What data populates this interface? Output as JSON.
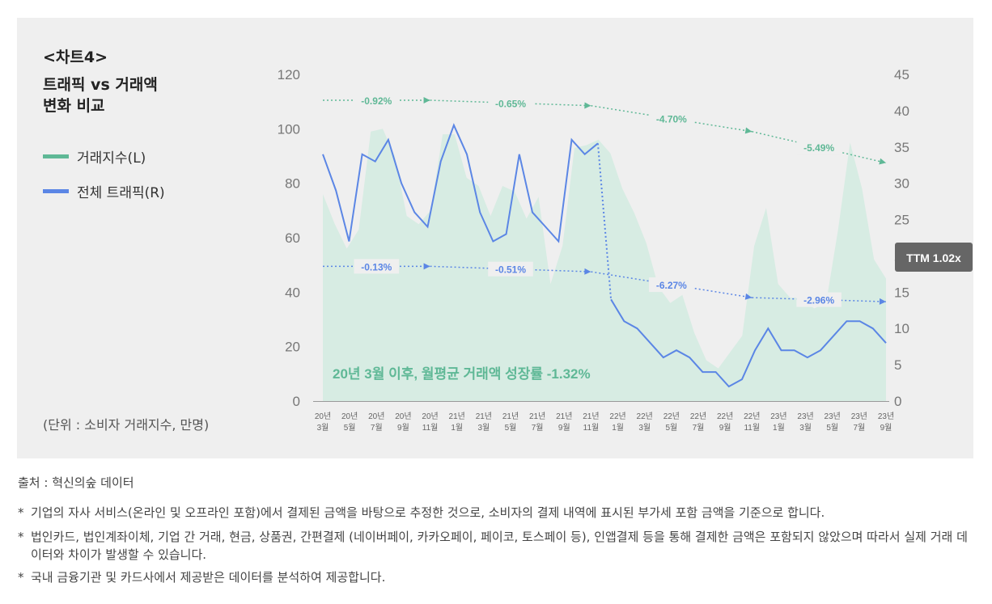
{
  "chart_label": "<차트4>",
  "title_lines": [
    "트래픽 vs 거래액",
    "변화 비교"
  ],
  "legend": [
    {
      "label": "거래지수(L)",
      "color": "#5fb896"
    },
    {
      "label": "전체 트래픽(R)",
      "color": "#5b86e5"
    }
  ],
  "unit_note": "(단위 : 소비자 거래지수, 만명)",
  "source": "출처 : 혁신의숲 데이터",
  "notes": [
    {
      "star": "*",
      "text": "기업의 자사 서비스(온라인 및 오프라인 포함)에서 결제된 금액을 바탕으로 추정한 것으로, 소비자의 결제 내역에 표시된 부가세 포함 금액을 기준으로 합니다."
    },
    {
      "star": "*",
      "text": "법인카드, 법인계좌이체, 기업 간 거래, 현금, 상품권, 간편결제 (네이버페이, 카카오페이, 페이코, 토스페이 등), 인앱결제 등을 통해 결제한 금액은 포함되지 않았으며 따라서 실제 거래 데이터와 차이가 발생할 수 있습니다."
    },
    {
      "star": "*",
      "text": "국내 금융기관 및 카드사에서 제공받은 데이터를 분석하여 제공합니다."
    }
  ],
  "colors": {
    "area": "#d7ece3",
    "traffic": "#5b86e5",
    "trend_green": "#5fb896",
    "trend_blue": "#5b86e5",
    "ttm_bg": "#666666"
  },
  "chart_data": {
    "type": "area+line",
    "y_left": {
      "min": 0,
      "max": 120,
      "ticks": [
        0,
        20,
        40,
        60,
        80,
        100,
        120
      ]
    },
    "y_right": {
      "min": 0,
      "max": 45,
      "ticks": [
        0,
        5,
        10,
        15,
        20,
        25,
        30,
        35,
        40,
        45
      ]
    },
    "x_tick_labels": [
      [
        "20년",
        "3월"
      ],
      [
        "20년",
        "5월"
      ],
      [
        "20년",
        "7월"
      ],
      [
        "20년",
        "9월"
      ],
      [
        "20년",
        "11월"
      ],
      [
        "21년",
        "1월"
      ],
      [
        "21년",
        "3월"
      ],
      [
        "21년",
        "5월"
      ],
      [
        "21년",
        "7월"
      ],
      [
        "21년",
        "9월"
      ],
      [
        "21년",
        "11월"
      ],
      [
        "22년",
        "1월"
      ],
      [
        "22년",
        "3월"
      ],
      [
        "22년",
        "5월"
      ],
      [
        "22년",
        "7월"
      ],
      [
        "22년",
        "9월"
      ],
      [
        "22년",
        "11월"
      ],
      [
        "23년",
        "1월"
      ],
      [
        "23년",
        "3월"
      ],
      [
        "23년",
        "5월"
      ],
      [
        "23년",
        "7월"
      ],
      [
        "23년",
        "9월"
      ]
    ],
    "series": [
      {
        "name": "거래지수(L)",
        "axis": "left",
        "style": "area",
        "values": [
          76,
          65,
          56,
          63,
          99,
          100,
          90,
          68,
          65,
          70,
          98,
          98,
          82,
          79,
          68,
          79,
          77,
          67,
          75,
          43,
          57,
          93,
          94,
          96,
          91,
          78,
          69,
          58,
          42,
          36,
          39,
          25,
          15,
          12,
          18,
          24,
          57,
          71,
          43,
          38,
          38,
          34,
          36,
          63,
          95,
          78,
          52,
          45
        ]
      },
      {
        "name": "전체 트래픽(R)",
        "axis": "right",
        "style": "line",
        "values": [
          34,
          29,
          22,
          34,
          33,
          36,
          30,
          26,
          24,
          33,
          38,
          34,
          26,
          22,
          23,
          34,
          26,
          24,
          22,
          36,
          34,
          35.5,
          14,
          11,
          10,
          8,
          6,
          7,
          6,
          4,
          4,
          2,
          3,
          7,
          10,
          7,
          7,
          6,
          7,
          9,
          11,
          11,
          10,
          8
        ]
      }
    ],
    "traffic_drop": {
      "from_index": 21,
      "to_index": 22
    },
    "trend_lines": [
      {
        "name": "거래액 추세",
        "axis": "left",
        "color": "green",
        "points": [
          [
            0,
            110.5
          ],
          [
            4,
            110.5
          ],
          [
            10,
            108.5
          ],
          [
            16,
            99
          ],
          [
            21,
            87.5
          ]
        ],
        "labels": [
          "-0.92%",
          "-0.65%",
          "-4.70%",
          "-5.49%"
        ]
      },
      {
        "name": "트래픽 추세",
        "axis": "left",
        "color": "blue",
        "points": [
          [
            0,
            49.5
          ],
          [
            4,
            49.5
          ],
          [
            10,
            47.5
          ],
          [
            16,
            38
          ],
          [
            21,
            36.5
          ]
        ],
        "labels": [
          "-0.13%",
          "-0.51%",
          "-6.27%",
          "-2.96%"
        ]
      }
    ],
    "annotation": "20년 3월 이후, 월평균 거래액 성장률 -1.32%",
    "ttm_badge": "TTM 1.02x"
  }
}
